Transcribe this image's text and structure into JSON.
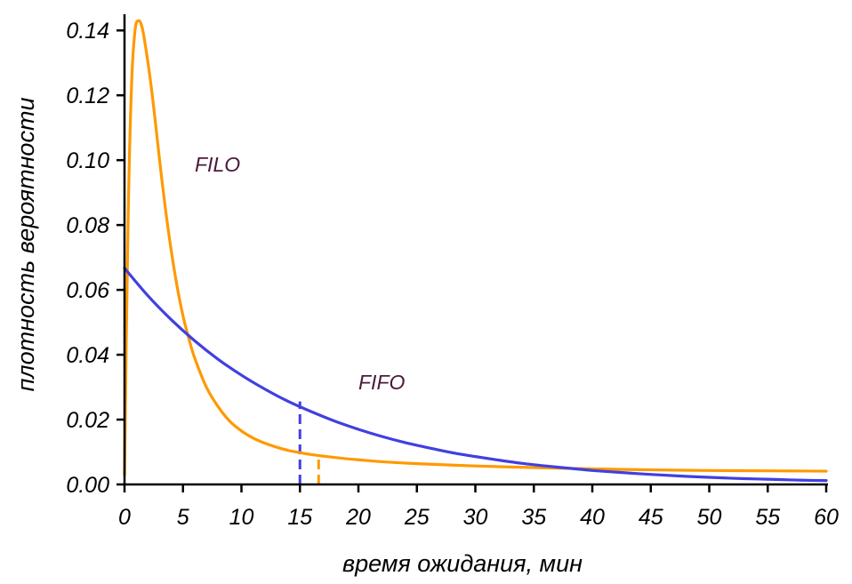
{
  "chart_data": {
    "type": "line",
    "xlabel": "время ожидания, мин",
    "ylabel": "плотность вероятности",
    "xlim": [
      0,
      60
    ],
    "ylim": [
      0,
      0.145
    ],
    "x_ticks": [
      0,
      5,
      10,
      15,
      20,
      25,
      30,
      35,
      40,
      45,
      50,
      55,
      60
    ],
    "x_tick_labels": [
      "0",
      "5",
      "10",
      "15",
      "20",
      "25",
      "30",
      "35",
      "40",
      "45",
      "50",
      "55",
      "60"
    ],
    "y_ticks": [
      0,
      0.02,
      0.04,
      0.06,
      0.08,
      0.1,
      0.12,
      0.14
    ],
    "y_tick_labels": [
      "0.00",
      "0.02",
      "0.04",
      "0.06",
      "0.08",
      "0.10",
      "0.12",
      "0.14"
    ],
    "grid": false,
    "series": [
      {
        "name": "FILO",
        "color": "#ff9900",
        "x": [
          0,
          0.3,
          0.6,
          0.9,
          1.2,
          1.5,
          1.8,
          2.2,
          2.6,
          3,
          3.5,
          4,
          4.5,
          5,
          5.5,
          6,
          7,
          8,
          9,
          10,
          11,
          12,
          13,
          14,
          15,
          16,
          18,
          20,
          22,
          25,
          30,
          35,
          40,
          45,
          50,
          55,
          60
        ],
        "y": [
          0.003,
          0.08,
          0.123,
          0.14,
          0.143,
          0.141,
          0.135,
          0.125,
          0.113,
          0.1,
          0.085,
          0.072,
          0.061,
          0.052,
          0.045,
          0.039,
          0.03,
          0.024,
          0.0195,
          0.0165,
          0.0143,
          0.0127,
          0.0115,
          0.0105,
          0.0098,
          0.0092,
          0.0083,
          0.0076,
          0.007,
          0.0064,
          0.0057,
          0.0052,
          0.0048,
          0.0045,
          0.0043,
          0.0042,
          0.0041
        ]
      },
      {
        "name": "FIFO",
        "color": "#4040e0",
        "x": [
          0,
          2,
          4,
          6,
          8,
          10,
          12,
          14,
          16,
          18,
          20,
          22,
          24,
          26,
          28,
          30,
          32,
          34,
          36,
          38,
          40,
          42,
          44,
          46,
          48,
          50,
          52,
          54,
          56,
          58,
          60
        ],
        "y": [
          0.0667,
          0.0582,
          0.0508,
          0.0443,
          0.0386,
          0.0337,
          0.0294,
          0.0256,
          0.0224,
          0.0195,
          0.017,
          0.0148,
          0.0129,
          0.0113,
          0.0098,
          0.0086,
          0.0075,
          0.0065,
          0.0057,
          0.005,
          0.0043,
          0.0038,
          0.0033,
          0.0029,
          0.0025,
          0.0022,
          0.0019,
          0.0017,
          0.0015,
          0.0013,
          0.0012
        ]
      }
    ],
    "mean_markers": [
      {
        "series": "FIFO",
        "x": 15,
        "y": 0.0256,
        "color": "#4040e0"
      },
      {
        "series": "FILO",
        "x": 16.6,
        "y": 0.0093,
        "color": "#ff9900"
      }
    ],
    "annotations": [
      {
        "text": "FILO",
        "x": 6,
        "y": 0.1
      }
    ]
  },
  "labels": {
    "filo": "FILO",
    "fifo": "FIFO"
  }
}
